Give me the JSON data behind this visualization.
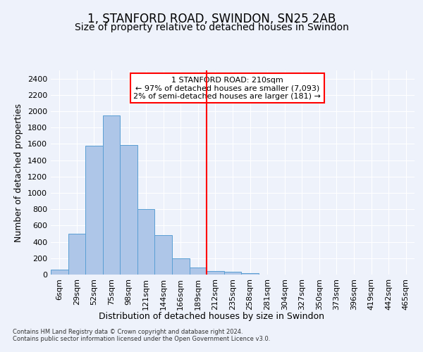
{
  "title": "1, STANFORD ROAD, SWINDON, SN25 2AB",
  "subtitle": "Size of property relative to detached houses in Swindon",
  "xlabel": "Distribution of detached houses by size in Swindon",
  "ylabel": "Number of detached properties",
  "footer_line1": "Contains HM Land Registry data © Crown copyright and database right 2024.",
  "footer_line2": "Contains public sector information licensed under the Open Government Licence v3.0.",
  "bar_labels": [
    "6sqm",
    "29sqm",
    "52sqm",
    "75sqm",
    "98sqm",
    "121sqm",
    "144sqm",
    "166sqm",
    "189sqm",
    "212sqm",
    "235sqm",
    "258sqm",
    "281sqm",
    "304sqm",
    "327sqm",
    "350sqm",
    "373sqm",
    "396sqm",
    "419sqm",
    "442sqm",
    "465sqm"
  ],
  "bar_values": [
    60,
    500,
    1580,
    1950,
    1590,
    800,
    480,
    200,
    90,
    40,
    35,
    20,
    0,
    0,
    0,
    0,
    0,
    0,
    0,
    0,
    0
  ],
  "bar_color": "#aec6e8",
  "bar_edge_color": "#5a9fd4",
  "highlight_line_color": "red",
  "highlight_line_index": 9,
  "annotation_box_text": "1 STANFORD ROAD: 210sqm\n← 97% of detached houses are smaller (7,093)\n2% of semi-detached houses are larger (181) →",
  "ylim": [
    0,
    2500
  ],
  "yticks": [
    0,
    200,
    400,
    600,
    800,
    1000,
    1200,
    1400,
    1600,
    1800,
    2000,
    2200,
    2400
  ],
  "bg_color": "#eef2fb",
  "grid_color": "#ffffff",
  "title_fontsize": 12,
  "subtitle_fontsize": 10,
  "xlabel_fontsize": 9,
  "ylabel_fontsize": 9,
  "tick_fontsize": 8,
  "annot_fontsize": 8,
  "footer_fontsize": 6
}
